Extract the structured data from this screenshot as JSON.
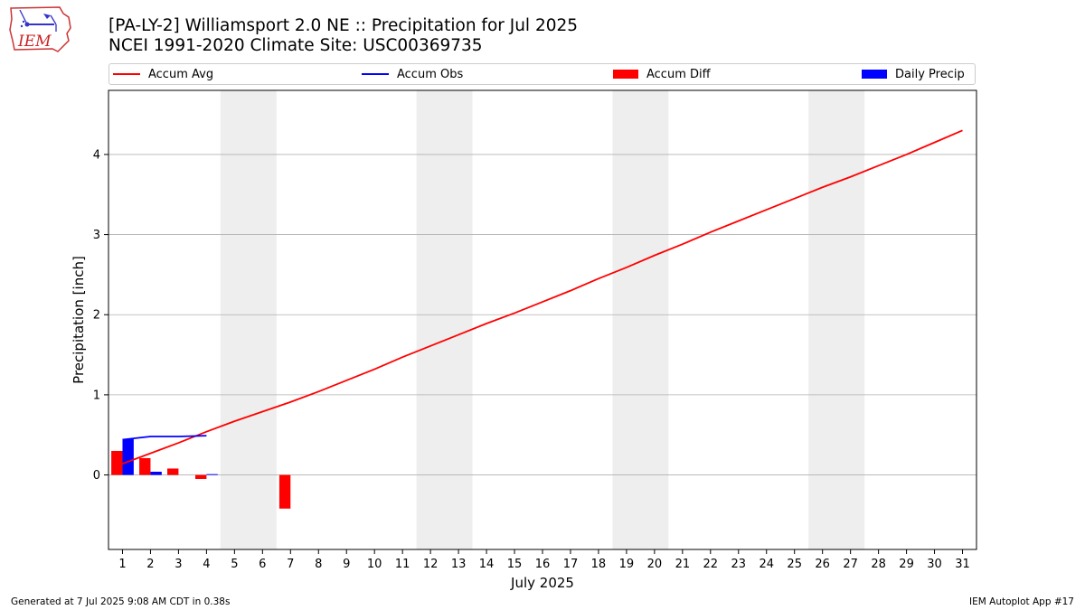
{
  "header": {
    "title_line1": "[PA-LY-2] Williamsport 2.0 NE :: Precipitation for Jul 2025",
    "title_line2": "NCEI 1991-2020 Climate Site: USC00369735"
  },
  "logo": {
    "text": "IEM"
  },
  "footer": {
    "left": "Generated at 7 Jul 2025 9:08 AM CDT in 0.38s",
    "right": "IEM Autoplot App #17"
  },
  "colors": {
    "avg": "#ff0000",
    "obs": "#0000ff",
    "diff": "#ff0000",
    "daily": "#0000ff",
    "weekend": "#eeeeee",
    "grid": "#b0b0b0"
  },
  "chart_data": {
    "type": "bar",
    "xlabel": "July 2025",
    "ylabel": "Precipitation [inch]",
    "xlim": [
      0.5,
      31.5
    ],
    "ylim": [
      -0.93,
      4.8
    ],
    "yticks": [
      0,
      1,
      2,
      3,
      4
    ],
    "days": [
      1,
      2,
      3,
      4,
      5,
      6,
      7,
      8,
      9,
      10,
      11,
      12,
      13,
      14,
      15,
      16,
      17,
      18,
      19,
      20,
      21,
      22,
      23,
      24,
      25,
      26,
      27,
      28,
      29,
      30,
      31
    ],
    "weekend_spans": [
      [
        4.5,
        6.5
      ],
      [
        11.5,
        13.5
      ],
      [
        18.5,
        20.5
      ],
      [
        25.5,
        27.5
      ]
    ],
    "grid": true,
    "legend_placement": "top",
    "legend": [
      "Accum Avg",
      "Accum Obs",
      "Accum Diff",
      "Daily Precip"
    ],
    "series": [
      {
        "name": "Accum Avg",
        "kind": "line",
        "x": [
          1,
          2,
          3,
          4,
          5,
          6,
          7,
          8,
          9,
          10,
          11,
          12,
          13,
          14,
          15,
          16,
          17,
          18,
          19,
          20,
          21,
          22,
          23,
          24,
          25,
          26,
          27,
          28,
          29,
          30,
          31
        ],
        "values": [
          0.14,
          0.27,
          0.4,
          0.54,
          0.67,
          0.79,
          0.91,
          1.04,
          1.18,
          1.32,
          1.47,
          1.61,
          1.75,
          1.89,
          2.02,
          2.16,
          2.3,
          2.45,
          2.59,
          2.74,
          2.88,
          3.03,
          3.17,
          3.31,
          3.45,
          3.59,
          3.72,
          3.86,
          4.0,
          4.15,
          4.3
        ]
      },
      {
        "name": "Accum Obs",
        "kind": "line",
        "x": [
          1,
          2,
          3,
          4
        ],
        "values": [
          0.44,
          0.48,
          0.48,
          0.49
        ]
      },
      {
        "name": "Accum Diff",
        "kind": "bar",
        "x": [
          1,
          2,
          3,
          4,
          7
        ],
        "values": [
          0.3,
          0.21,
          0.08,
          -0.05,
          -0.42
        ]
      },
      {
        "name": "Daily Precip",
        "kind": "bar",
        "x": [
          1,
          2,
          4
        ],
        "values": [
          0.45,
          0.04,
          0.01
        ]
      }
    ]
  }
}
